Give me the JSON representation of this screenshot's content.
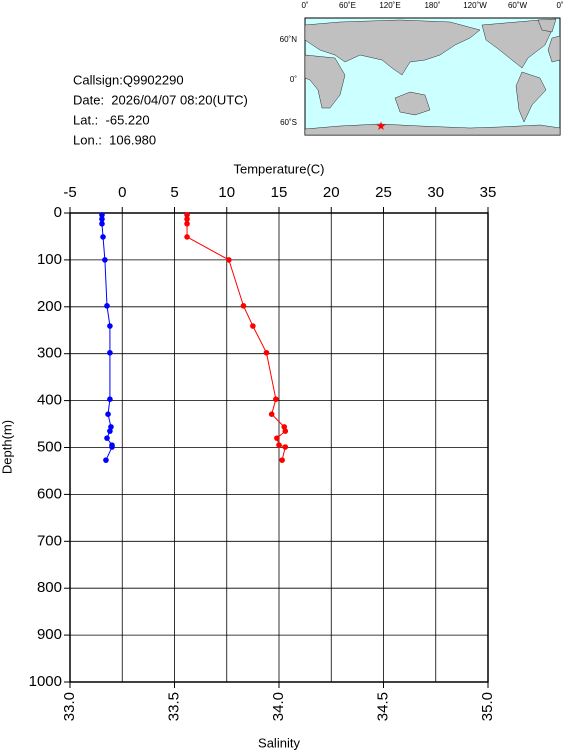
{
  "info": {
    "callsign": "Callsign:Q9902290",
    "date": "Date:  2026/04/07 08:20(UTC)",
    "lat": "Lat.:  -65.220",
    "lon": "Lon.:  106.980"
  },
  "map": {
    "lon_labels": [
      "0˚",
      "60˚E",
      "120˚E",
      "180˚",
      "120˚W",
      "60˚W",
      "0˚"
    ],
    "lat_labels": [
      "60˚N",
      "0˚",
      "60˚S"
    ]
  },
  "chart_data": {
    "type": "profile",
    "xlabel_top": "Temperature(C)",
    "xlabel": "Salinity",
    "ylabel": "Depth(m)",
    "x2lim": [
      -5,
      35
    ],
    "x2ticks": [
      -5,
      0,
      5,
      10,
      15,
      20,
      25,
      30,
      35
    ],
    "xlim": [
      33,
      35
    ],
    "xticks": [
      {
        "value": 33,
        "label": "33.0"
      },
      {
        "value": 33.5,
        "label": "33.5"
      },
      {
        "value": 34,
        "label": "34.0"
      },
      {
        "value": 34.5,
        "label": "34.5"
      },
      {
        "value": 35,
        "label": "35.0"
      }
    ],
    "ylim": [
      0,
      1000
    ],
    "yticks": [
      0,
      100,
      200,
      300,
      400,
      500,
      600,
      700,
      800,
      900,
      1000
    ],
    "y_inverted": true,
    "grid": true,
    "depth": [
      4,
      13,
      23,
      51,
      100,
      198,
      241,
      298,
      397,
      429,
      456,
      465,
      480,
      495,
      499,
      527
    ],
    "series": [
      {
        "color": "#ff0000",
        "axis": "x2",
        "values": [
          6.2,
          6.2,
          6.2,
          6.2,
          10.2,
          11.6,
          12.5,
          13.8,
          14.7,
          14.3,
          15.5,
          15.6,
          14.8,
          15.0,
          15.6,
          15.3
        ]
      },
      {
        "color": "#0000ff",
        "axis": "x",
        "values": [
          33.153,
          33.153,
          33.153,
          33.158,
          33.167,
          33.177,
          33.191,
          33.191,
          33.191,
          33.182,
          33.196,
          33.191,
          33.177,
          33.201,
          33.201,
          33.172
        ]
      }
    ]
  }
}
